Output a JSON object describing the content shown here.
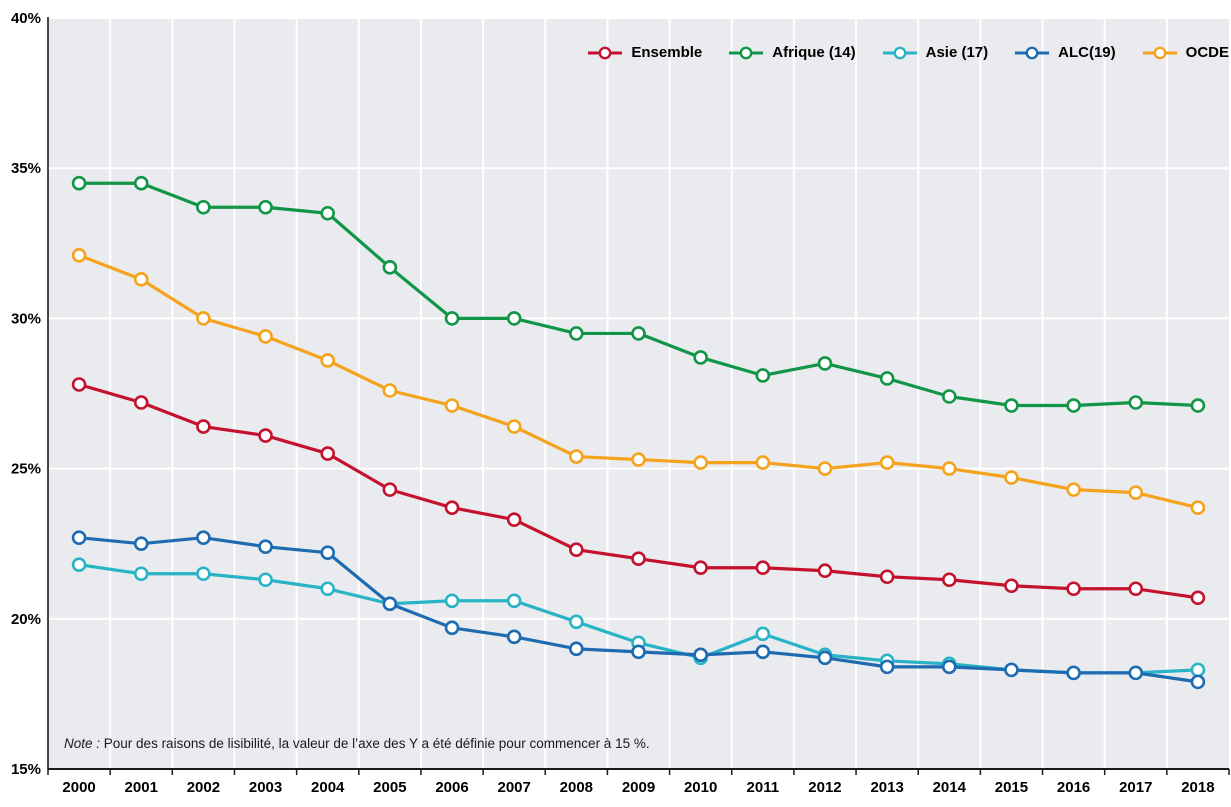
{
  "chart_data": {
    "type": "line",
    "title": "",
    "xlabel": "",
    "ylabel": "",
    "ylim": [
      15,
      40
    ],
    "y_ticks": [
      15,
      20,
      25,
      30,
      35,
      40
    ],
    "y_tick_labels": [
      "15%",
      "20%",
      "25%",
      "30%",
      "35%",
      "40%"
    ],
    "grid": true,
    "legend_position": "top-right",
    "plot_background": "#e9ebee",
    "gridline_color": "#ffffff",
    "axis_color": "#1a1a1a",
    "categories": [
      "2000",
      "2001",
      "2002",
      "2003",
      "2004",
      "2005",
      "2006",
      "2007",
      "2008",
      "2009",
      "2010",
      "2011",
      "2012",
      "2013",
      "2014",
      "2015",
      "2016",
      "2017",
      "2018"
    ],
    "series": [
      {
        "name": "Ensemble",
        "color": "#c4122e",
        "values": [
          27.8,
          27.2,
          26.4,
          26.1,
          25.5,
          24.3,
          23.7,
          23.3,
          22.3,
          22.0,
          21.7,
          21.7,
          21.6,
          21.4,
          21.3,
          21.1,
          21.0,
          21.0,
          20.7
        ]
      },
      {
        "name": "Afrique (14)",
        "color": "#119547",
        "values": [
          34.5,
          34.5,
          33.7,
          33.7,
          33.5,
          31.7,
          30.0,
          30.0,
          29.5,
          29.5,
          28.7,
          28.1,
          28.5,
          28.0,
          27.4,
          27.1,
          27.1,
          27.2,
          27.1
        ]
      },
      {
        "name": "Asie (17)",
        "color": "#29b4c6",
        "values": [
          21.8,
          21.5,
          21.5,
          21.3,
          21.0,
          20.5,
          20.6,
          20.6,
          19.9,
          19.2,
          18.7,
          19.5,
          18.8,
          18.6,
          18.5,
          18.3,
          18.2,
          18.2,
          18.3
        ]
      },
      {
        "name": "ALC(19)",
        "color": "#1e6bb1",
        "values": [
          22.7,
          22.5,
          22.7,
          22.4,
          22.2,
          20.5,
          19.7,
          19.4,
          19.0,
          18.9,
          18.8,
          18.9,
          18.7,
          18.4,
          18.4,
          18.3,
          18.2,
          18.2,
          17.9
        ]
      },
      {
        "name": "OCDE",
        "color": "#f5a21d",
        "values": [
          32.1,
          31.3,
          30.0,
          29.4,
          28.6,
          27.6,
          27.1,
          26.4,
          25.4,
          25.3,
          25.2,
          25.2,
          25.0,
          25.2,
          25.0,
          24.7,
          24.3,
          24.2,
          23.7
        ]
      }
    ]
  },
  "note": {
    "prefix": "Note :",
    "text": " Pour des raisons de lisibilité, la valeur de l’axe des Y a été définie pour commencer à 15 %."
  }
}
